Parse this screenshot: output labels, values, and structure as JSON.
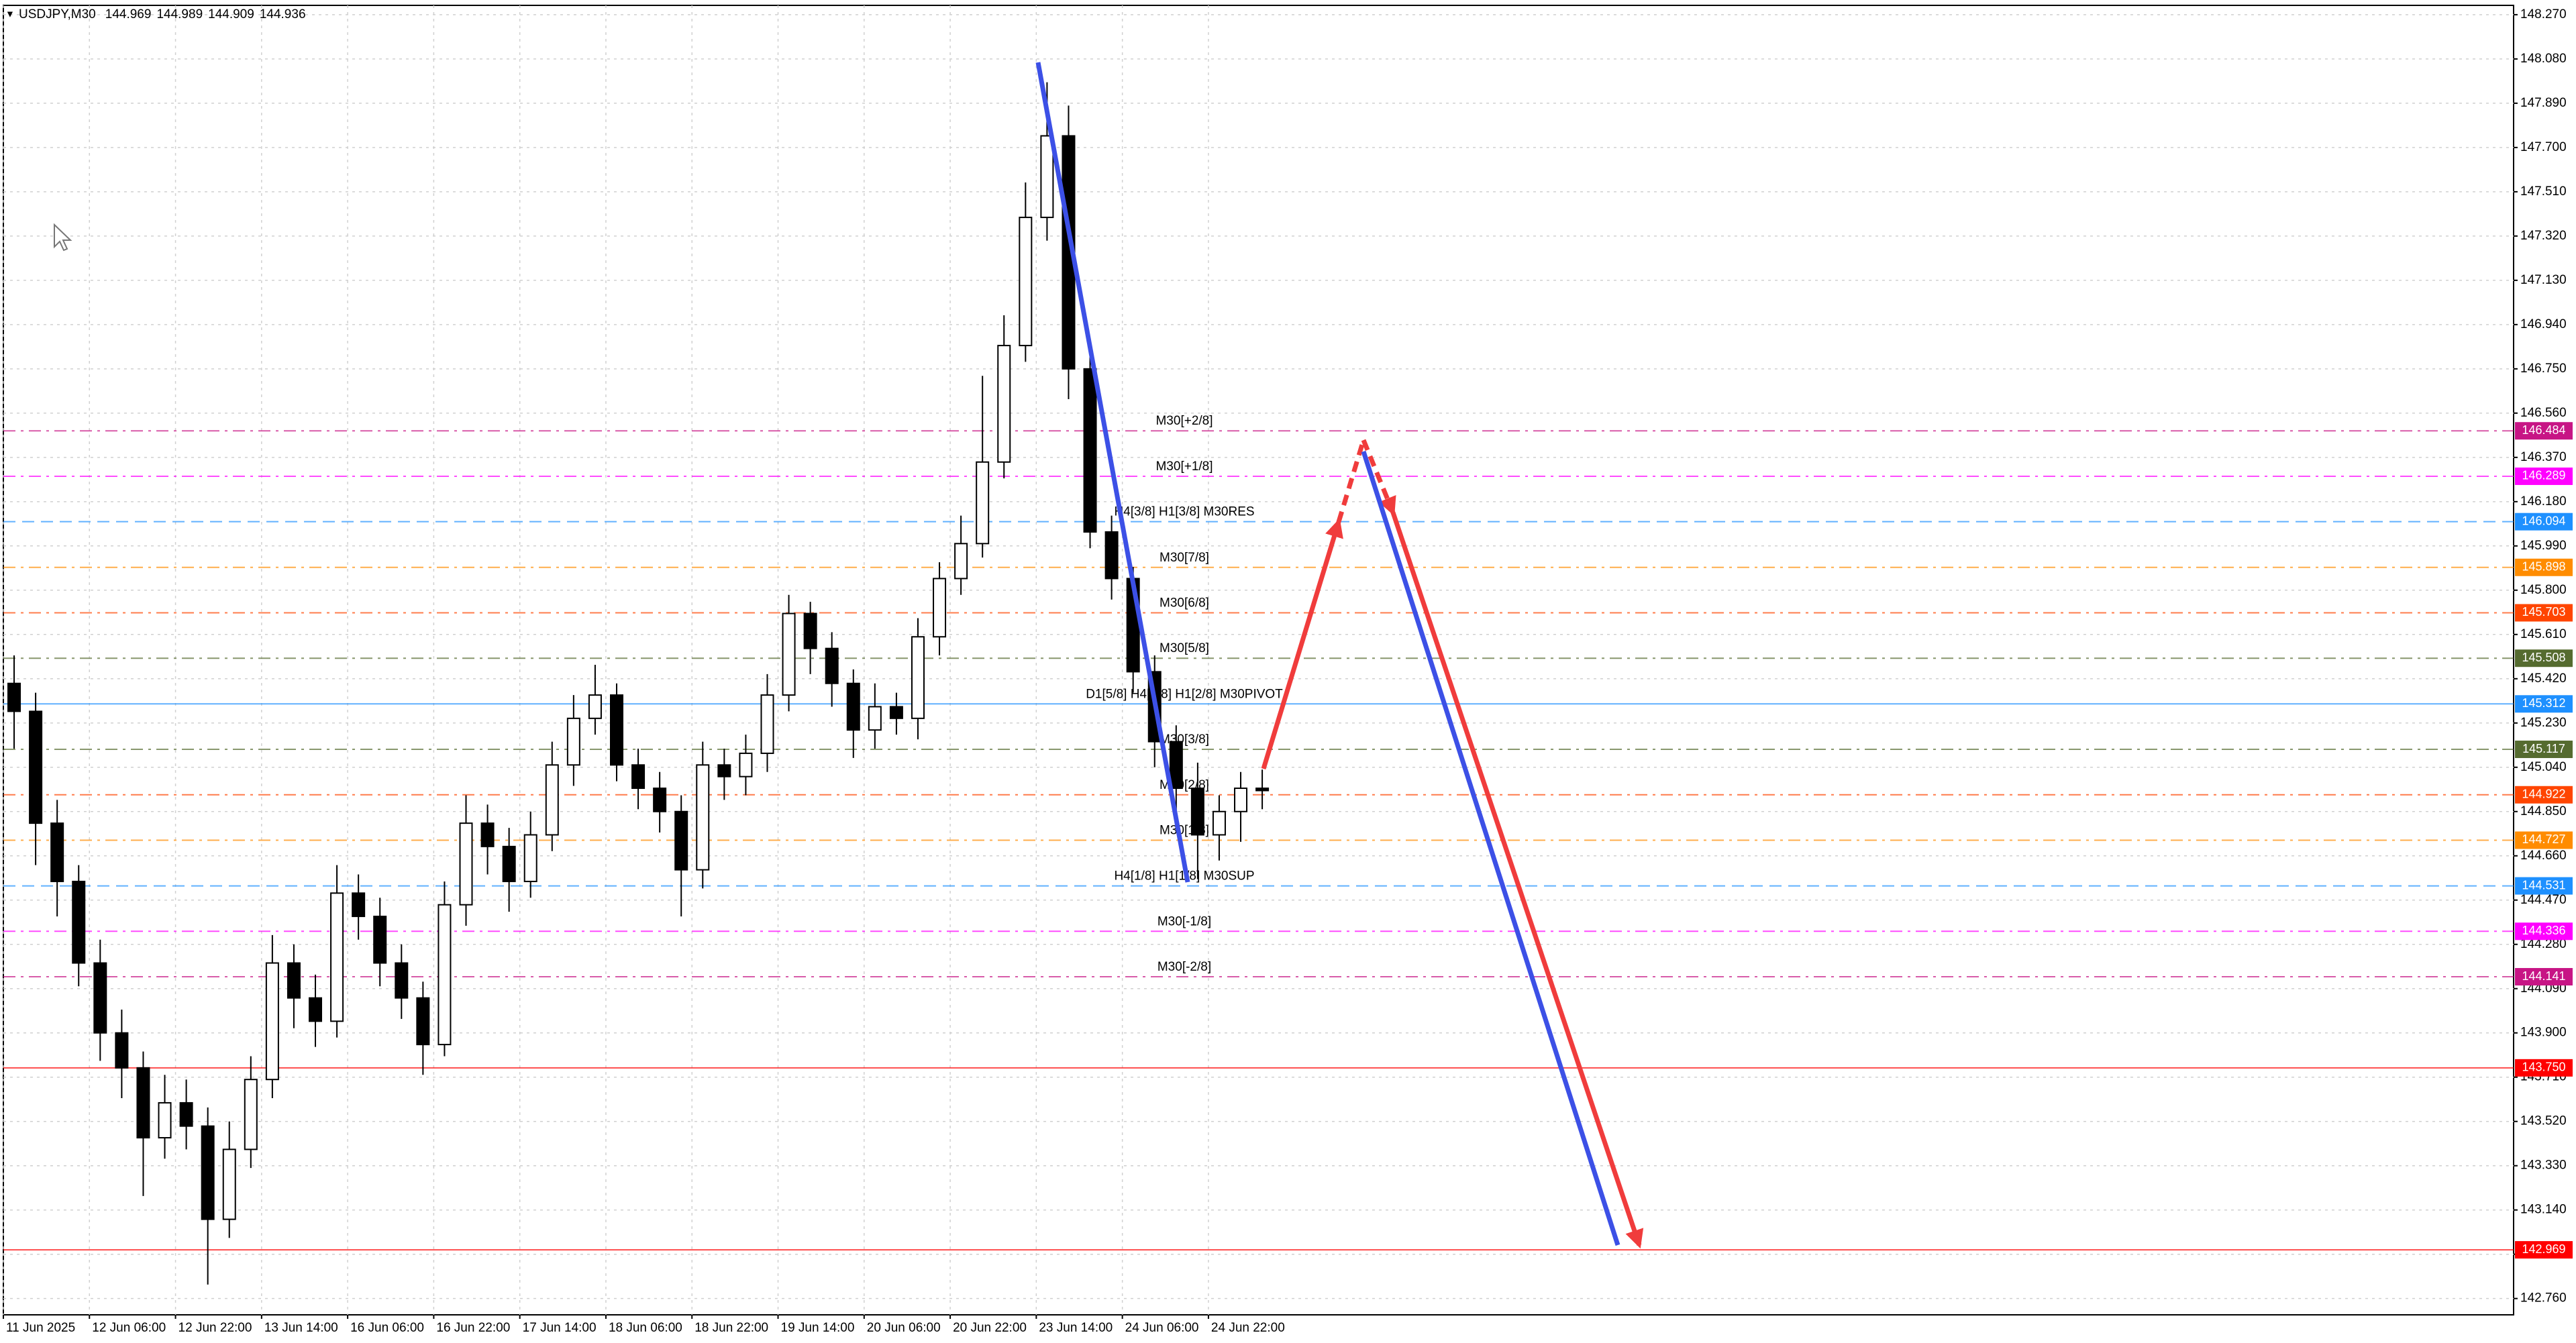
{
  "chart_data": {
    "type": "candlestick",
    "symbol": "USDJPY,M30",
    "header_values": [
      144.969,
      144.989,
      144.909,
      144.936
    ],
    "categories": [
      "11 Jun 2025",
      "12 Jun 06:00",
      "12 Jun 22:00",
      "13 Jun 14:00",
      "16 Jun 06:00",
      "16 Jun 22:00",
      "17 Jun 14:00",
      "18 Jun 06:00",
      "18 Jun 22:00",
      "19 Jun 14:00",
      "20 Jun 06:00",
      "20 Jun 22:00",
      "23 Jun 14:00",
      "24 Jun 06:00",
      "24 Jun 22:00"
    ],
    "open": [
      145.4,
      145.28,
      144.8,
      144.55,
      144.2,
      143.9,
      143.75,
      143.45,
      143.6,
      143.5,
      143.1,
      143.4,
      143.7,
      144.2,
      144.05,
      143.95,
      144.5,
      144.4,
      144.2,
      144.05,
      143.85,
      144.45,
      144.8,
      144.7,
      144.55,
      144.75,
      145.05,
      145.25,
      145.35,
      145.05,
      144.95,
      144.85,
      144.6,
      145.05,
      145.0,
      145.1,
      145.35,
      145.7,
      145.55,
      145.4,
      145.2,
      145.3,
      145.25,
      145.6,
      145.85,
      146.0,
      146.35,
      146.85,
      147.4,
      147.75,
      146.75,
      146.05,
      145.85,
      145.45,
      145.15,
      144.95,
      144.75,
      144.85,
      144.95
    ],
    "high": [
      145.52,
      145.36,
      144.9,
      144.62,
      144.3,
      144.0,
      143.82,
      143.72,
      143.7,
      143.58,
      143.52,
      143.8,
      144.32,
      144.28,
      144.15,
      144.62,
      144.58,
      144.48,
      144.28,
      144.12,
      144.55,
      144.92,
      144.88,
      144.78,
      144.85,
      145.15,
      145.35,
      145.48,
      145.4,
      145.12,
      145.02,
      144.92,
      145.15,
      145.12,
      145.18,
      145.44,
      145.78,
      145.75,
      145.62,
      145.46,
      145.4,
      145.36,
      145.68,
      145.92,
      146.12,
      146.72,
      146.98,
      147.55,
      147.98,
      147.88,
      146.8,
      146.12,
      145.9,
      145.52,
      145.22,
      145.06,
      144.92,
      145.02,
      145.03
    ],
    "low": [
      145.12,
      144.62,
      144.4,
      144.1,
      143.78,
      143.62,
      143.2,
      143.36,
      143.4,
      142.82,
      143.02,
      143.32,
      143.62,
      143.92,
      143.84,
      143.88,
      144.3,
      144.1,
      143.96,
      143.72,
      143.8,
      144.36,
      144.58,
      144.42,
      144.48,
      144.68,
      144.96,
      145.18,
      144.98,
      144.86,
      144.76,
      144.4,
      144.52,
      144.9,
      144.92,
      145.02,
      145.28,
      145.44,
      145.3,
      145.08,
      145.12,
      145.18,
      145.16,
      145.52,
      145.78,
      145.94,
      146.28,
      146.78,
      147.3,
      146.62,
      145.98,
      145.76,
      145.36,
      145.04,
      144.82,
      144.56,
      144.64,
      144.72,
      144.86
    ],
    "close": [
      145.28,
      144.8,
      144.55,
      144.2,
      143.9,
      143.75,
      143.45,
      143.6,
      143.5,
      143.1,
      143.4,
      143.7,
      144.2,
      144.05,
      143.95,
      144.5,
      144.4,
      144.2,
      144.05,
      143.85,
      144.45,
      144.8,
      144.7,
      144.55,
      144.75,
      145.05,
      145.25,
      145.35,
      145.05,
      144.95,
      144.85,
      144.6,
      145.05,
      145.0,
      145.1,
      145.35,
      145.7,
      145.55,
      145.4,
      145.2,
      145.3,
      145.25,
      145.6,
      145.85,
      146.0,
      146.35,
      146.85,
      147.4,
      147.75,
      146.75,
      146.05,
      145.85,
      145.45,
      145.15,
      144.95,
      144.75,
      144.85,
      144.95,
      144.94
    ],
    "ylim": [
      142.69,
      148.31
    ],
    "yticks": [
      {
        "value": 148.27,
        "label": "148.270"
      },
      {
        "value": 148.08,
        "label": "148.080"
      },
      {
        "value": 147.89,
        "label": "147.890"
      },
      {
        "value": 147.7,
        "label": "147.700"
      },
      {
        "value": 147.51,
        "label": "147.510"
      },
      {
        "value": 147.32,
        "label": "147.320"
      },
      {
        "value": 147.13,
        "label": "147.130"
      },
      {
        "value": 146.94,
        "label": "146.940"
      },
      {
        "value": 146.75,
        "label": "146.750"
      },
      {
        "value": 146.56,
        "label": "146.560"
      },
      {
        "value": 146.37,
        "label": "146.370"
      },
      {
        "value": 146.18,
        "label": "146.180"
      },
      {
        "value": 145.99,
        "label": "145.990"
      },
      {
        "value": 145.8,
        "label": "145.800"
      },
      {
        "value": 145.61,
        "label": "145.610"
      },
      {
        "value": 145.42,
        "label": "145.420"
      },
      {
        "value": 145.23,
        "label": "145.230"
      },
      {
        "value": 145.04,
        "label": "145.040"
      },
      {
        "value": 144.85,
        "label": "144.850"
      },
      {
        "value": 144.66,
        "label": "144.660"
      },
      {
        "value": 144.47,
        "label": "144.470"
      },
      {
        "value": 144.28,
        "label": "144.280"
      },
      {
        "value": 144.09,
        "label": "144.090"
      },
      {
        "value": 143.9,
        "label": "143.900"
      },
      {
        "value": 143.71,
        "label": "143.710"
      },
      {
        "value": 143.52,
        "label": "143.520"
      },
      {
        "value": 143.33,
        "label": "143.330"
      },
      {
        "value": 143.14,
        "label": "143.140"
      },
      {
        "value": 142.95,
        "label": "142.950"
      },
      {
        "value": 142.76,
        "label": "142.760"
      }
    ],
    "grid": true,
    "levels": [
      {
        "label": "M30[+2/8]",
        "price": 146.484,
        "color": "#c71585",
        "dash": "dashdot"
      },
      {
        "label": "M30[+1/8]",
        "price": 146.289,
        "color": "#ff00ff",
        "dash": "dashdot"
      },
      {
        "label": "H4[3/8] H1[3/8] M30RES",
        "price": 146.094,
        "color": "#1e90ff",
        "dash": "dash"
      },
      {
        "label": "M30[7/8]",
        "price": 145.898,
        "color": "#ff8c00",
        "dash": "dashdot"
      },
      {
        "label": "M30[6/8]",
        "price": 145.703,
        "color": "#ff4500",
        "dash": "dashdot"
      },
      {
        "label": "M30[5/8]",
        "price": 145.508,
        "color": "#556b2f",
        "dash": "dashdot"
      },
      {
        "label": "D1[5/8] H4[2/8] H1[2/8] M30PIVOT",
        "price": 145.312,
        "color": "#1e90ff",
        "dash": "solid"
      },
      {
        "label": "M30[3/8]",
        "price": 145.117,
        "color": "#556b2f",
        "dash": "dashdot"
      },
      {
        "label": "M30[2/8]",
        "price": 144.922,
        "color": "#ff4500",
        "dash": "dashdot"
      },
      {
        "label": "M30[1/8]",
        "price": 144.727,
        "color": "#ff8c00",
        "dash": "dashdot"
      },
      {
        "label": "H4[1/8] H1[1/8] M30SUP",
        "price": 144.531,
        "color": "#1e90ff",
        "dash": "dash"
      },
      {
        "label": "M30[-1/8]",
        "price": 144.336,
        "color": "#ff00ff",
        "dash": "dashdot"
      },
      {
        "label": "M30[-2/8]",
        "price": 144.141,
        "color": "#c71585",
        "dash": "dashdot"
      },
      {
        "price": {
          "value": 143.75,
          "label": "143.750"
        },
        "color": "#ff0000",
        "dash": "solid"
      },
      {
        "price": 142.969,
        "color": "#ff0000",
        "dash": "solid"
      }
    ]
  }
}
